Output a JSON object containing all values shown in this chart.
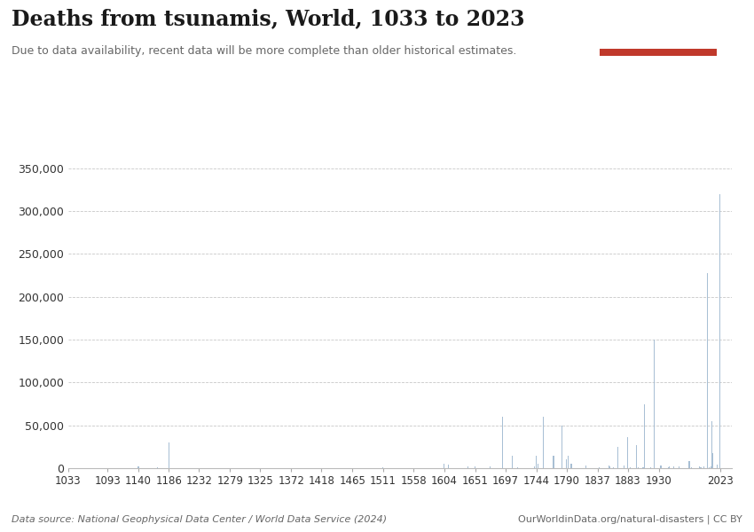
{
  "title": "Deaths from tsunamis, World, 1033 to 2023",
  "subtitle": "Due to data availability, recent data will be more complete than older historical estimates.",
  "datasource": "Data source: National Geophysical Data Center / World Data Service (2024)",
  "url": "OurWorldinData.org/natural-disasters | CC BY",
  "bar_color": "#a8bfd4",
  "background_color": "#ffffff",
  "grid_color": "#c8c8c8",
  "title_color": "#1a1a1a",
  "subtitle_color": "#666666",
  "footer_color": "#666666",
  "ylim": [
    0,
    360000
  ],
  "yticks": [
    0,
    50000,
    100000,
    150000,
    200000,
    250000,
    300000,
    350000
  ],
  "xtick_labels": [
    "1033",
    "1093",
    "1140",
    "1186",
    "1232",
    "1279",
    "1325",
    "1372",
    "1418",
    "1465",
    "1511",
    "1558",
    "1604",
    "1651",
    "1697",
    "1744",
    "1790",
    "1837",
    "1883",
    "1930",
    "2023"
  ],
  "logo_bg": "#1a3a5c",
  "logo_red": "#c0392b",
  "data": [
    [
      1033,
      0
    ],
    [
      1060,
      500
    ],
    [
      1093,
      0
    ],
    [
      1100,
      0
    ],
    [
      1140,
      2000
    ],
    [
      1169,
      1000
    ],
    [
      1186,
      30000
    ],
    [
      1200,
      0
    ],
    [
      1232,
      0
    ],
    [
      1250,
      0
    ],
    [
      1279,
      0
    ],
    [
      1300,
      0
    ],
    [
      1325,
      0
    ],
    [
      1340,
      0
    ],
    [
      1360,
      0
    ],
    [
      1372,
      0
    ],
    [
      1390,
      0
    ],
    [
      1418,
      0
    ],
    [
      1440,
      0
    ],
    [
      1460,
      0
    ],
    [
      1465,
      0
    ],
    [
      1480,
      0
    ],
    [
      1511,
      1000
    ],
    [
      1530,
      0
    ],
    [
      1556,
      0
    ],
    [
      1570,
      0
    ],
    [
      1580,
      500
    ],
    [
      1600,
      0
    ],
    [
      1604,
      5000
    ],
    [
      1611,
      4000
    ],
    [
      1640,
      2000
    ],
    [
      1651,
      2000
    ],
    [
      1660,
      0
    ],
    [
      1674,
      2000
    ],
    [
      1693,
      60000
    ],
    [
      1697,
      0
    ],
    [
      1700,
      0
    ],
    [
      1707,
      15000
    ],
    [
      1716,
      1000
    ],
    [
      1730,
      0
    ],
    [
      1741,
      2000
    ],
    [
      1744,
      15000
    ],
    [
      1746,
      5000
    ],
    [
      1755,
      60000
    ],
    [
      1770,
      15000
    ],
    [
      1771,
      13000
    ],
    [
      1783,
      50000
    ],
    [
      1790,
      10000
    ],
    [
      1792,
      15000
    ],
    [
      1797,
      5000
    ],
    [
      1819,
      3000
    ],
    [
      1837,
      0
    ],
    [
      1840,
      1000
    ],
    [
      1854,
      3000
    ],
    [
      1856,
      2000
    ],
    [
      1861,
      1000
    ],
    [
      1868,
      25000
    ],
    [
      1877,
      3000
    ],
    [
      1883,
      36000
    ],
    [
      1886,
      1000
    ],
    [
      1896,
      27000
    ],
    [
      1899,
      1000
    ],
    [
      1906,
      1500
    ],
    [
      1908,
      75000
    ],
    [
      1918,
      1000
    ],
    [
      1923,
      150000
    ],
    [
      1933,
      3000
    ],
    [
      1944,
      1200
    ],
    [
      1946,
      1600
    ],
    [
      1952,
      2000
    ],
    [
      1960,
      2000
    ],
    [
      1964,
      130
    ],
    [
      1976,
      8000
    ],
    [
      1979,
      700
    ],
    [
      1983,
      100
    ],
    [
      1992,
      2500
    ],
    [
      1993,
      1000
    ],
    [
      1994,
      1000
    ],
    [
      1998,
      2500
    ],
    [
      2004,
      227899
    ],
    [
      2006,
      800
    ],
    [
      2009,
      1800
    ],
    [
      2010,
      55000
    ],
    [
      2011,
      18000
    ],
    [
      2018,
      4340
    ],
    [
      2022,
      500
    ],
    [
      2023,
      320000
    ]
  ]
}
